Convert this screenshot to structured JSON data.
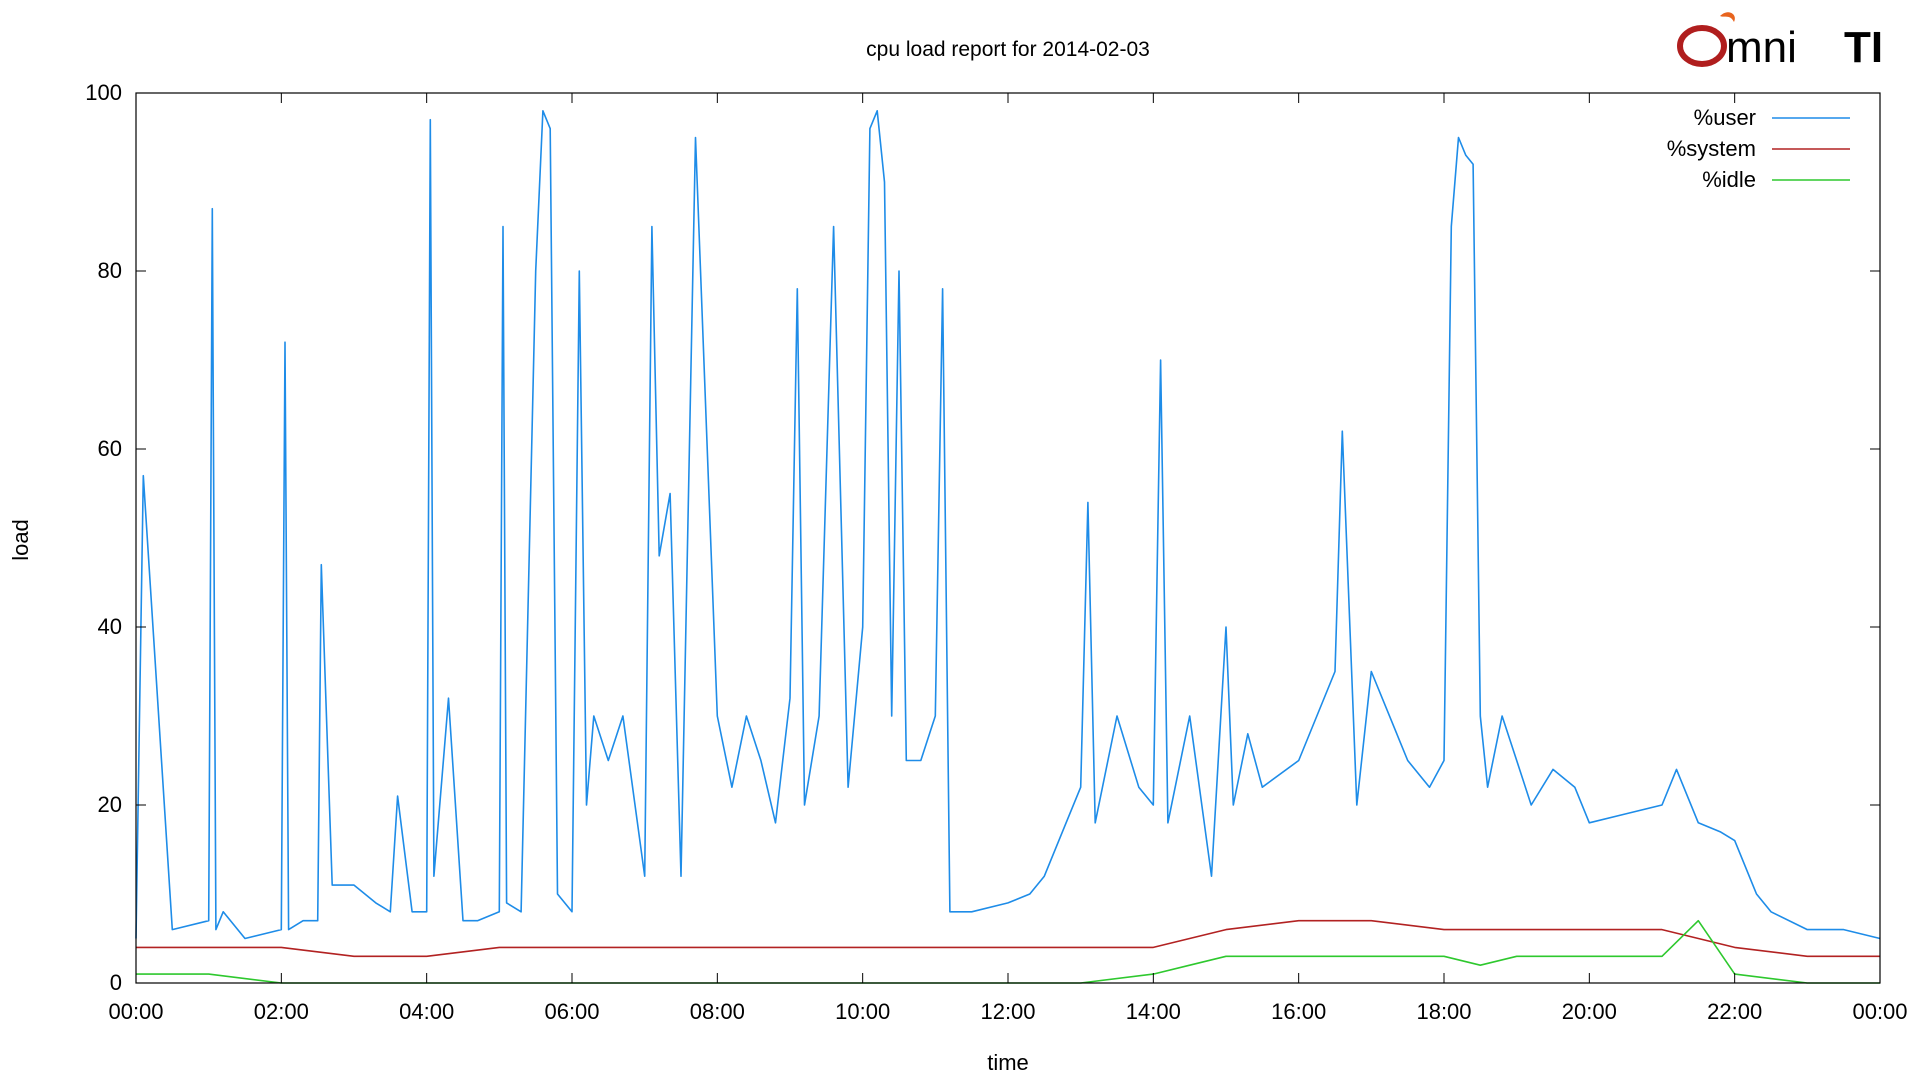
{
  "chart_data": {
    "type": "line",
    "title": "cpu load report for 2014-02-03",
    "xlabel": "time",
    "ylabel": "load",
    "x_ticks": [
      "00:00",
      "02:00",
      "04:00",
      "06:00",
      "08:00",
      "10:00",
      "12:00",
      "14:00",
      "16:00",
      "18:00",
      "20:00",
      "22:00",
      "00:00"
    ],
    "xlim": [
      0,
      24
    ],
    "ylim": [
      0,
      100
    ],
    "y_ticks": [
      0,
      20,
      40,
      60,
      80,
      100
    ],
    "legend_position": "top-right",
    "grid": false,
    "series": [
      {
        "name": "%user",
        "color": "#1e8ce8",
        "x": [
          0.0,
          0.1,
          0.5,
          1.0,
          1.05,
          1.1,
          1.2,
          1.5,
          2.0,
          2.05,
          2.1,
          2.3,
          2.5,
          2.55,
          2.7,
          3.0,
          3.3,
          3.5,
          3.6,
          3.8,
          4.0,
          4.05,
          4.1,
          4.3,
          4.5,
          4.7,
          5.0,
          5.05,
          5.1,
          5.3,
          5.5,
          5.6,
          5.7,
          5.8,
          6.0,
          6.1,
          6.2,
          6.3,
          6.5,
          6.7,
          7.0,
          7.1,
          7.2,
          7.35,
          7.5,
          7.7,
          8.0,
          8.2,
          8.4,
          8.6,
          8.8,
          9.0,
          9.1,
          9.2,
          9.4,
          9.6,
          9.8,
          10.0,
          10.1,
          10.2,
          10.3,
          10.4,
          10.5,
          10.6,
          10.8,
          11.0,
          11.1,
          11.2,
          11.5,
          12.0,
          12.3,
          12.5,
          12.8,
          13.0,
          13.1,
          13.2,
          13.5,
          13.8,
          14.0,
          14.1,
          14.2,
          14.5,
          14.8,
          15.0,
          15.1,
          15.3,
          15.5,
          16.0,
          16.5,
          16.6,
          16.8,
          17.0,
          17.5,
          17.8,
          18.0,
          18.1,
          18.2,
          18.3,
          18.4,
          18.5,
          18.6,
          18.8,
          19.0,
          19.2,
          19.5,
          19.8,
          20.0,
          20.5,
          21.0,
          21.2,
          21.5,
          21.8,
          22.0,
          22.3,
          22.5,
          23.0,
          23.5,
          24.0
        ],
        "y": [
          5,
          57,
          6,
          7,
          87,
          6,
          8,
          5,
          6,
          72,
          6,
          7,
          7,
          47,
          11,
          11,
          9,
          8,
          21,
          8,
          8,
          97,
          12,
          32,
          7,
          7,
          8,
          85,
          9,
          8,
          80,
          98,
          96,
          10,
          8,
          80,
          20,
          30,
          25,
          30,
          12,
          85,
          48,
          55,
          12,
          95,
          30,
          22,
          30,
          25,
          18,
          32,
          78,
          20,
          30,
          85,
          22,
          40,
          96,
          98,
          90,
          30,
          80,
          25,
          25,
          30,
          78,
          8,
          8,
          9,
          10,
          12,
          18,
          22,
          54,
          18,
          30,
          22,
          20,
          70,
          18,
          30,
          12,
          40,
          20,
          28,
          22,
          25,
          35,
          62,
          20,
          35,
          25,
          22,
          25,
          85,
          95,
          93,
          92,
          30,
          22,
          30,
          25,
          20,
          24,
          22,
          18,
          19,
          20,
          24,
          18,
          17,
          16,
          10,
          8,
          6,
          6,
          5
        ]
      },
      {
        "name": "%system",
        "color": "#b22222",
        "x": [
          0.0,
          1.0,
          2.0,
          3.0,
          4.0,
          5.0,
          6.0,
          7.0,
          8.0,
          9.0,
          10.0,
          11.0,
          12.0,
          13.0,
          14.0,
          15.0,
          16.0,
          17.0,
          18.0,
          19.0,
          20.0,
          21.0,
          22.0,
          23.0,
          24.0
        ],
        "y": [
          4,
          4,
          4,
          3,
          3,
          4,
          4,
          4,
          4,
          4,
          4,
          4,
          4,
          4,
          4,
          6,
          7,
          7,
          6,
          6,
          6,
          6,
          4,
          3,
          3
        ]
      },
      {
        "name": "%idle",
        "color": "#2ec82e",
        "x": [
          0.0,
          1.0,
          2.0,
          3.0,
          4.0,
          5.0,
          6.0,
          7.0,
          8.0,
          9.0,
          10.0,
          11.0,
          12.0,
          13.0,
          14.0,
          14.5,
          15.0,
          16.0,
          17.0,
          18.0,
          18.5,
          19.0,
          20.0,
          21.0,
          21.5,
          22.0,
          23.0,
          24.0
        ],
        "y": [
          1,
          1,
          0,
          0,
          0,
          0,
          0,
          0,
          0,
          0,
          0,
          0,
          0,
          0,
          1,
          2,
          3,
          3,
          3,
          3,
          2,
          3,
          3,
          3,
          7,
          1,
          0,
          0
        ]
      }
    ]
  },
  "logo": {
    "text_left": "mni",
    "text_right": "TI",
    "initial": "O"
  },
  "colors": {
    "axis": "#000000",
    "logo_dark": "#3a3a3a",
    "logo_red": "#b01e1e",
    "logo_flame": "#e8641e"
  }
}
